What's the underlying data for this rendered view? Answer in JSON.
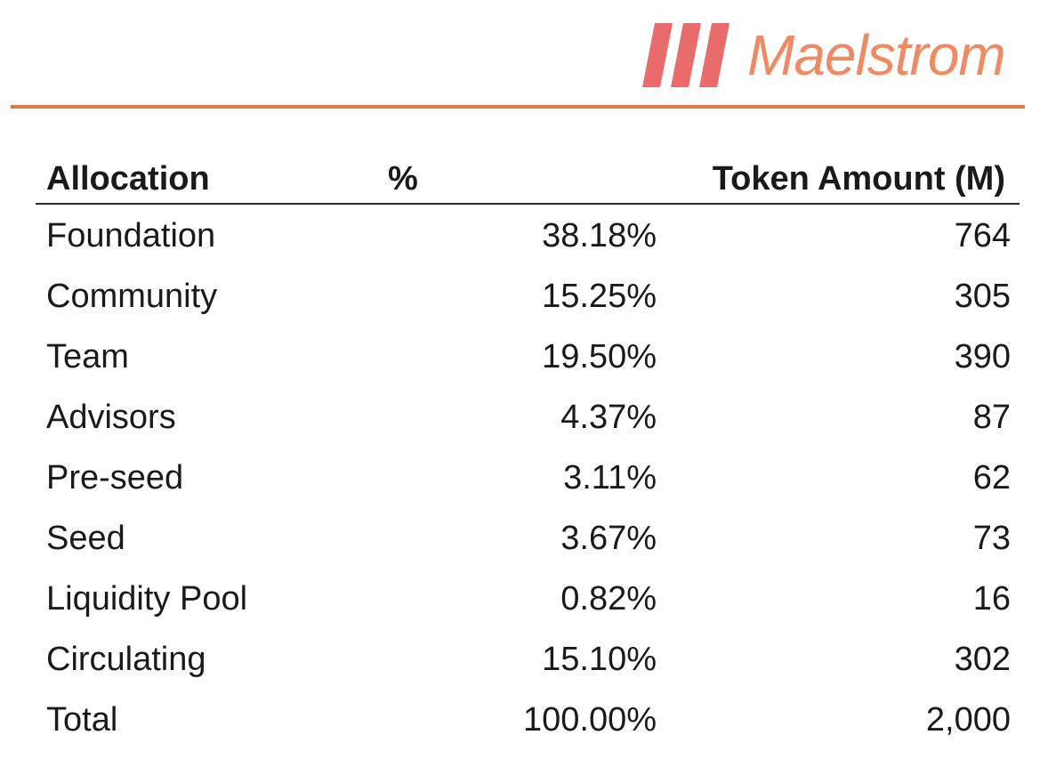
{
  "brand": {
    "name": "Maelstrom",
    "text_color": "#ef8a62",
    "mark_color": "#ea6b6b",
    "rule_color": "#e07a45"
  },
  "table": {
    "headers": {
      "allocation": "Allocation",
      "percent": "%",
      "amount": "Token Amount (M)"
    },
    "rows": [
      {
        "allocation": "Foundation",
        "percent": "38.18%",
        "amount": "764"
      },
      {
        "allocation": "Community",
        "percent": "15.25%",
        "amount": "305"
      },
      {
        "allocation": "Team",
        "percent": "19.50%",
        "amount": "390"
      },
      {
        "allocation": "Advisors",
        "percent": "4.37%",
        "amount": "87"
      },
      {
        "allocation": "Pre-seed",
        "percent": "3.11%",
        "amount": "62"
      },
      {
        "allocation": "Seed",
        "percent": "3.67%",
        "amount": "73"
      },
      {
        "allocation": "Liquidity Pool",
        "percent": "0.82%",
        "amount": "16"
      },
      {
        "allocation": "Circulating",
        "percent": "15.10%",
        "amount": "302"
      },
      {
        "allocation": "Total",
        "percent": "100.00%",
        "amount": "2,000"
      }
    ]
  }
}
